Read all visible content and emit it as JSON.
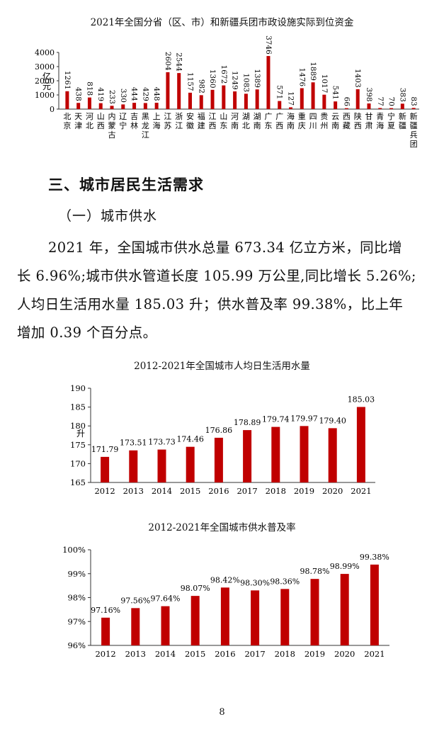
{
  "chart_data": [
    {
      "type": "bar",
      "title": "2021年全国分省（区、市）和新疆兵团市政设施实际到位资金",
      "ylabel": "亿元",
      "ylim": [
        0,
        4000
      ],
      "yticks": [
        "4000",
        "3000",
        "2000",
        "1000",
        "0"
      ],
      "color": "#c00000",
      "categories": [
        "北京",
        "天津",
        "河北",
        "山西",
        "内蒙古",
        "辽宁",
        "吉林",
        "黑龙江",
        "上海",
        "江苏",
        "浙江",
        "安徽",
        "福建",
        "江西",
        "山东",
        "河南",
        "湖北",
        "湖南",
        "广东",
        "广西",
        "海南",
        "重庆",
        "四川",
        "贵州",
        "云南",
        "西藏",
        "陕西",
        "甘肃",
        "青海",
        "宁夏",
        "新疆",
        "新疆兵团"
      ],
      "values": [
        1261,
        438,
        818,
        419,
        233,
        330,
        444,
        429,
        448,
        2604,
        2544,
        1157,
        982,
        1360,
        1672,
        1249,
        1083,
        1389,
        3746,
        571,
        127,
        1476,
        1889,
        1017,
        541,
        66,
        1403,
        398,
        77,
        70,
        383,
        83
      ]
    },
    {
      "type": "bar",
      "title": "2012-2021年全国城市人均日生活用水量",
      "ylabel": "升",
      "ylim": [
        165,
        190
      ],
      "yticks": [
        "190",
        "185",
        "180",
        "175",
        "170",
        "165"
      ],
      "color": "#c00000",
      "categories": [
        "2012",
        "2013",
        "2014",
        "2015",
        "2016",
        "2017",
        "2018",
        "2019",
        "2020",
        "2021"
      ],
      "values": [
        171.79,
        173.51,
        173.73,
        174.46,
        176.86,
        178.89,
        179.74,
        179.97,
        179.4,
        185.03
      ],
      "labels": [
        "171.79",
        "173.51",
        "173.73",
        "174.46",
        "176.86",
        "178.89",
        "179.74",
        "179.97",
        "179.40",
        "185.03"
      ]
    },
    {
      "type": "bar",
      "title": "2012-2021年全国城市供水普及率",
      "ylabel": "",
      "ylim": [
        96,
        100
      ],
      "yticks": [
        "100%",
        "99%",
        "98%",
        "97%",
        "96%"
      ],
      "color": "#c00000",
      "categories": [
        "2012",
        "2013",
        "2014",
        "2015",
        "2016",
        "2017",
        "2018",
        "2019",
        "2020",
        "2021"
      ],
      "values": [
        97.16,
        97.56,
        97.64,
        98.07,
        98.42,
        98.3,
        98.36,
        98.78,
        98.99,
        99.38
      ],
      "labels": [
        "97.16%",
        "97.56%",
        "97.64%",
        "98.07%",
        "98.42%",
        "98.30%",
        "98.36%",
        "98.78%",
        "98.99%",
        "99.38%"
      ]
    }
  ],
  "section": {
    "heading": "三、城市居民生活需求",
    "subheading": "（一）城市供水",
    "paragraph_lines": [
      "2021 年，全国城市供水总量 673.34 亿立方米，同比增",
      "长 6.96%;城市供水管道长度 105.99 万公里,同比增长 5.26%;",
      "人均日生活用水量 185.03 升；供水普及率 99.38%，比上年",
      "增加 0.39 个百分点。"
    ]
  },
  "page_number": "8"
}
